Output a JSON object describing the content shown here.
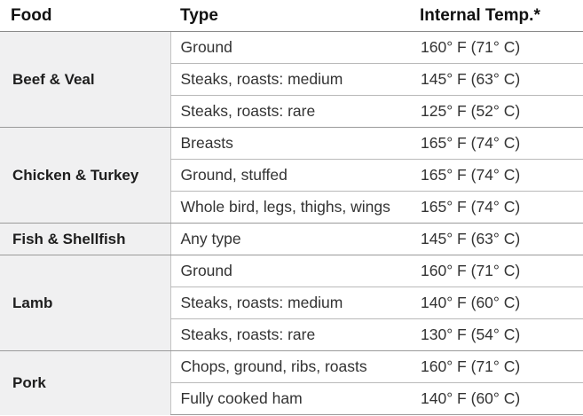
{
  "headers": {
    "food": "Food",
    "type": "Type",
    "temp": "Internal Temp.*"
  },
  "groups": [
    {
      "food": "Beef & Veal",
      "rows": [
        {
          "type": "Ground",
          "temp": "160° F (71° C)"
        },
        {
          "type": "Steaks, roasts: medium",
          "temp": "145° F (63° C)"
        },
        {
          "type": "Steaks, roasts: rare",
          "temp": "125° F (52° C)"
        }
      ]
    },
    {
      "food": "Chicken & Turkey",
      "rows": [
        {
          "type": "Breasts",
          "temp": "165° F (74° C)"
        },
        {
          "type": "Ground, stuffed",
          "temp": "165° F (74° C)"
        },
        {
          "type": "Whole bird, legs, thighs, wings",
          "temp": "165° F (74° C)"
        }
      ]
    },
    {
      "food": "Fish & Shellfish",
      "rows": [
        {
          "type": "Any type",
          "temp": "145° F (63° C)"
        }
      ]
    },
    {
      "food": "Lamb",
      "rows": [
        {
          "type": "Ground",
          "temp": "160° F (71° C)"
        },
        {
          "type": "Steaks, roasts: medium",
          "temp": "140° F (60° C)"
        },
        {
          "type": "Steaks, roasts: rare",
          "temp": "130° F (54° C)"
        }
      ]
    },
    {
      "food": "Pork",
      "rows": [
        {
          "type": "Chops, ground, ribs, roasts",
          "temp": "160° F (71° C)"
        },
        {
          "type": "Fully cooked ham",
          "temp": "140° F (60° C)"
        }
      ]
    }
  ]
}
